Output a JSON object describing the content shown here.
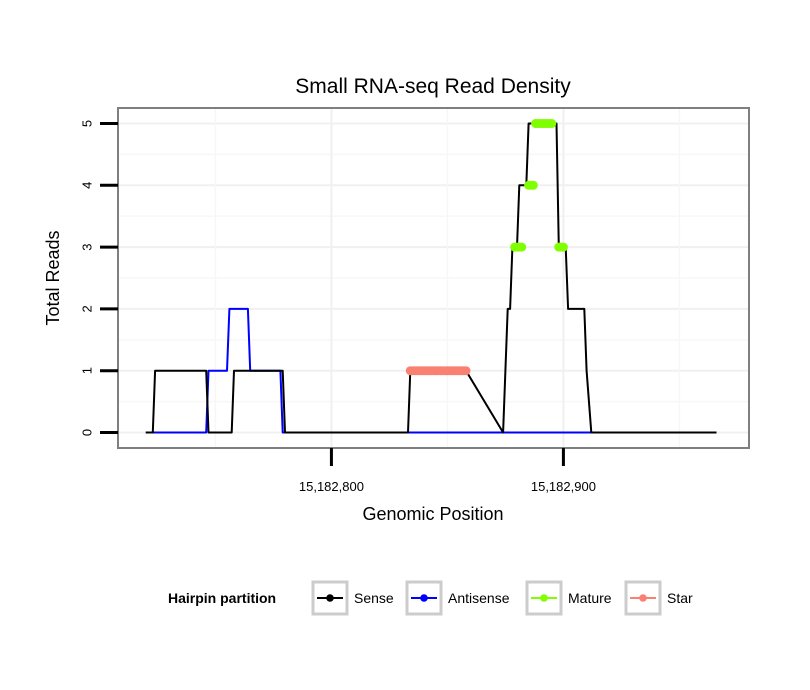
{
  "chart_data": {
    "type": "line",
    "title": "Small RNA-seq Read Density",
    "xlabel": "Genomic Position",
    "ylabel": "Total Reads",
    "xlim": [
      15182708,
      15182980
    ],
    "ylim": [
      -0.25,
      5.25
    ],
    "x_ticks": [
      {
        "value": 15182800,
        "label": "15,182,800"
      },
      {
        "value": 15182900,
        "label": "15,182,900"
      }
    ],
    "y_ticks": [
      {
        "value": 0,
        "label": "0"
      },
      {
        "value": 1,
        "label": "1"
      },
      {
        "value": 2,
        "label": "2"
      },
      {
        "value": 3,
        "label": "3"
      },
      {
        "value": 4,
        "label": "4"
      },
      {
        "value": 5,
        "label": "5"
      }
    ],
    "grid": true,
    "series": [
      {
        "name": "Sense",
        "color": "#000000",
        "x": [
          15182720,
          15182723,
          15182724,
          15182746,
          15182747,
          15182757,
          15182758,
          15182778,
          15182779,
          15182780,
          15182833,
          15182834,
          15182858,
          15182874,
          15182876,
          15182877,
          15182878,
          15182880,
          15182881,
          15182884,
          15182885,
          15182888,
          15182889,
          15182897,
          15182898,
          15182901,
          15182902,
          15182909,
          15182910,
          15182912,
          15182966
        ],
        "y": [
          0,
          0,
          1,
          1,
          0,
          0,
          1,
          1,
          1,
          0,
          0,
          1,
          1,
          0,
          2,
          2,
          3,
          3,
          4,
          4,
          5,
          5,
          5,
          5,
          3,
          3,
          2,
          2,
          1,
          0,
          0
        ]
      },
      {
        "name": "Antisense",
        "color": "#0000ff",
        "x": [
          15182720,
          15182746,
          15182747,
          15182755,
          15182756,
          15182764,
          15182765,
          15182778,
          15182779,
          15182966
        ],
        "y": [
          0,
          0,
          1,
          1,
          2,
          2,
          1,
          1,
          0,
          0
        ]
      },
      {
        "name": "Mature",
        "color": "#7fff00",
        "x": [
          15182879,
          15182880,
          15182881,
          15182882,
          15182885,
          15182886,
          15182887,
          15182888,
          15182889,
          15182890,
          15182891,
          15182892,
          15182893,
          15182894,
          15182895,
          15182898,
          15182899,
          15182900
        ],
        "y": [
          3,
          3,
          3,
          3,
          4,
          4,
          4,
          5,
          5,
          5,
          5,
          5,
          5,
          5,
          5,
          3,
          3,
          3
        ]
      },
      {
        "name": "Star",
        "color": "#fa8072",
        "x": [
          15182834,
          15182835,
          15182836,
          15182837,
          15182838,
          15182839,
          15182840,
          15182841,
          15182842,
          15182843,
          15182844,
          15182845,
          15182846,
          15182847,
          15182848,
          15182849,
          15182850,
          15182851,
          15182852,
          15182853,
          15182854,
          15182855,
          15182856,
          15182857,
          15182858
        ],
        "y": [
          1,
          1,
          1,
          1,
          1,
          1,
          1,
          1,
          1,
          1,
          1,
          1,
          1,
          1,
          1,
          1,
          1,
          1,
          1,
          1,
          1,
          1,
          1,
          1,
          1
        ]
      }
    ],
    "legend": {
      "title": "Hairpin partition",
      "position": "bottom",
      "entries": [
        {
          "label": "Sense",
          "color": "#000000"
        },
        {
          "label": "Antisense",
          "color": "#0000ff"
        },
        {
          "label": "Mature",
          "color": "#7fff00"
        },
        {
          "label": "Star",
          "color": "#fa8072"
        }
      ]
    }
  }
}
